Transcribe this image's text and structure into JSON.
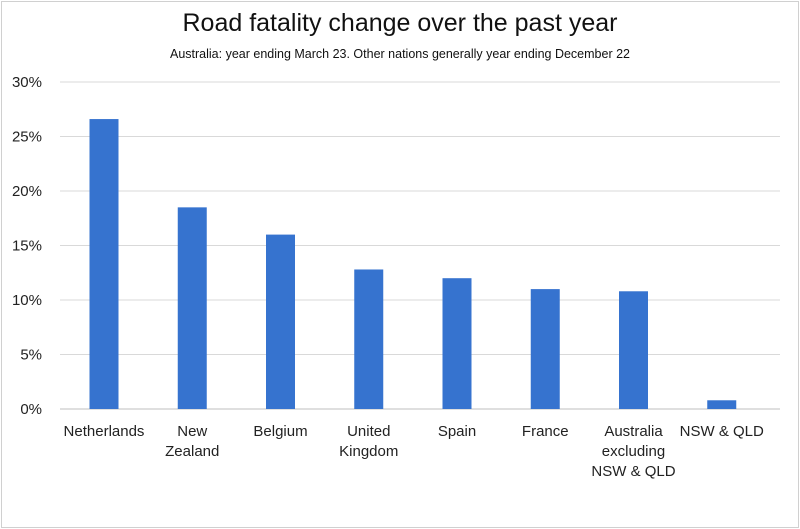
{
  "chart_data": {
    "type": "bar",
    "title": "Road fatality change over the past year",
    "subtitle": "Australia: year ending March 23. Other nations generally year ending December 22",
    "categories": [
      [
        "Netherlands"
      ],
      [
        "New",
        "Zealand"
      ],
      [
        "Belgium"
      ],
      [
        "United",
        "Kingdom"
      ],
      [
        "Spain"
      ],
      [
        "France"
      ],
      [
        "Australia",
        "excluding",
        "NSW & QLD"
      ],
      [
        "NSW & QLD"
      ]
    ],
    "values": [
      26.6,
      18.5,
      16.0,
      12.8,
      12.0,
      11.0,
      10.8,
      0.8
    ],
    "yticks": [
      "0%",
      "5%",
      "10%",
      "15%",
      "20%",
      "25%",
      "30%"
    ],
    "ylim": [
      0,
      30
    ],
    "grid": true,
    "legend": "none",
    "bar_color": "#3673cf",
    "grid_color": "#d9d9d9"
  }
}
